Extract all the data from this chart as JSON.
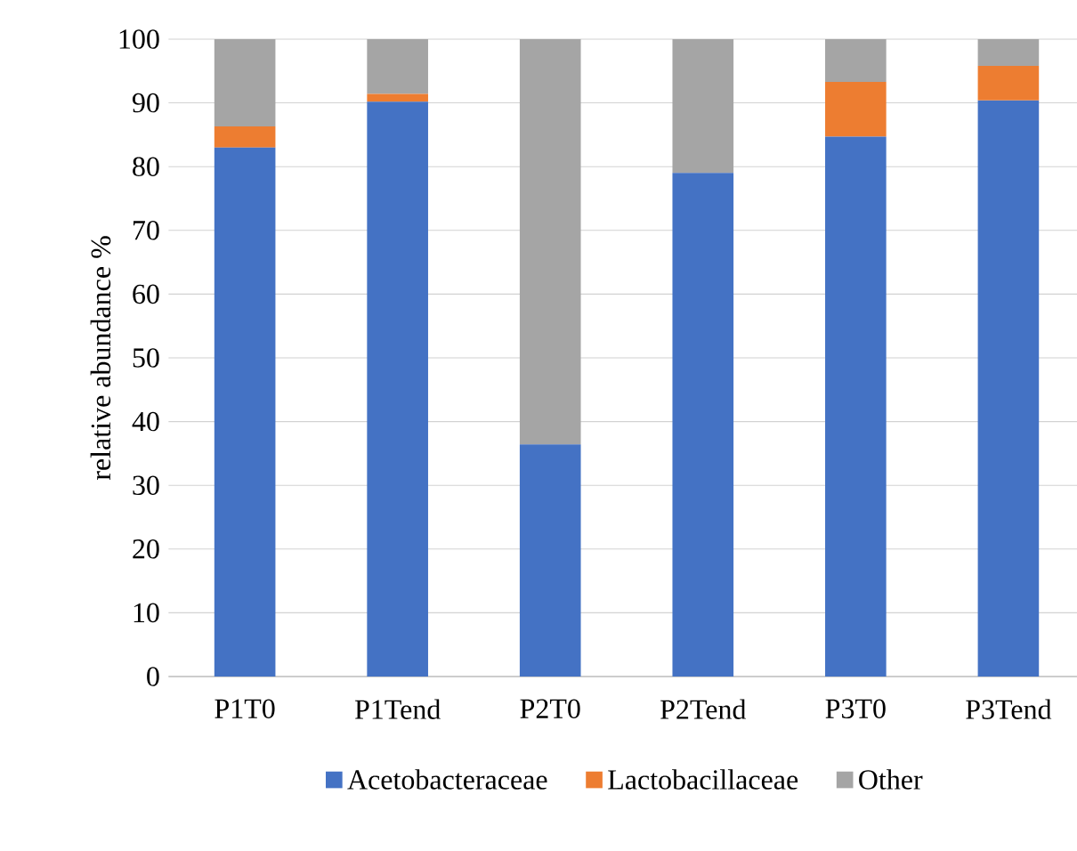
{
  "chart_data": {
    "type": "bar",
    "stacked": true,
    "ylabel": "relative abundance %",
    "categories": [
      "P1T0",
      "P1Tend",
      "P2T0",
      "P2Tend",
      "P3T0",
      "P3Tend"
    ],
    "series": [
      {
        "name": "Acetobacteraceae",
        "color": "#4472c4",
        "values": [
          83.0,
          90.2,
          36.4,
          79.0,
          84.7,
          90.4
        ]
      },
      {
        "name": "Lactobacillaceae",
        "color": "#ed7d31",
        "values": [
          3.3,
          1.2,
          0,
          0,
          8.6,
          5.4
        ]
      },
      {
        "name": "Other",
        "color": "#a5a5a5",
        "values": [
          13.7,
          8.6,
          63.6,
          21.0,
          6.7,
          4.2
        ]
      }
    ],
    "ylim": [
      0,
      100
    ],
    "yticks": [
      0,
      10,
      20,
      30,
      40,
      50,
      60,
      70,
      80,
      90,
      100
    ],
    "grid": "y",
    "legend": "bottom"
  }
}
